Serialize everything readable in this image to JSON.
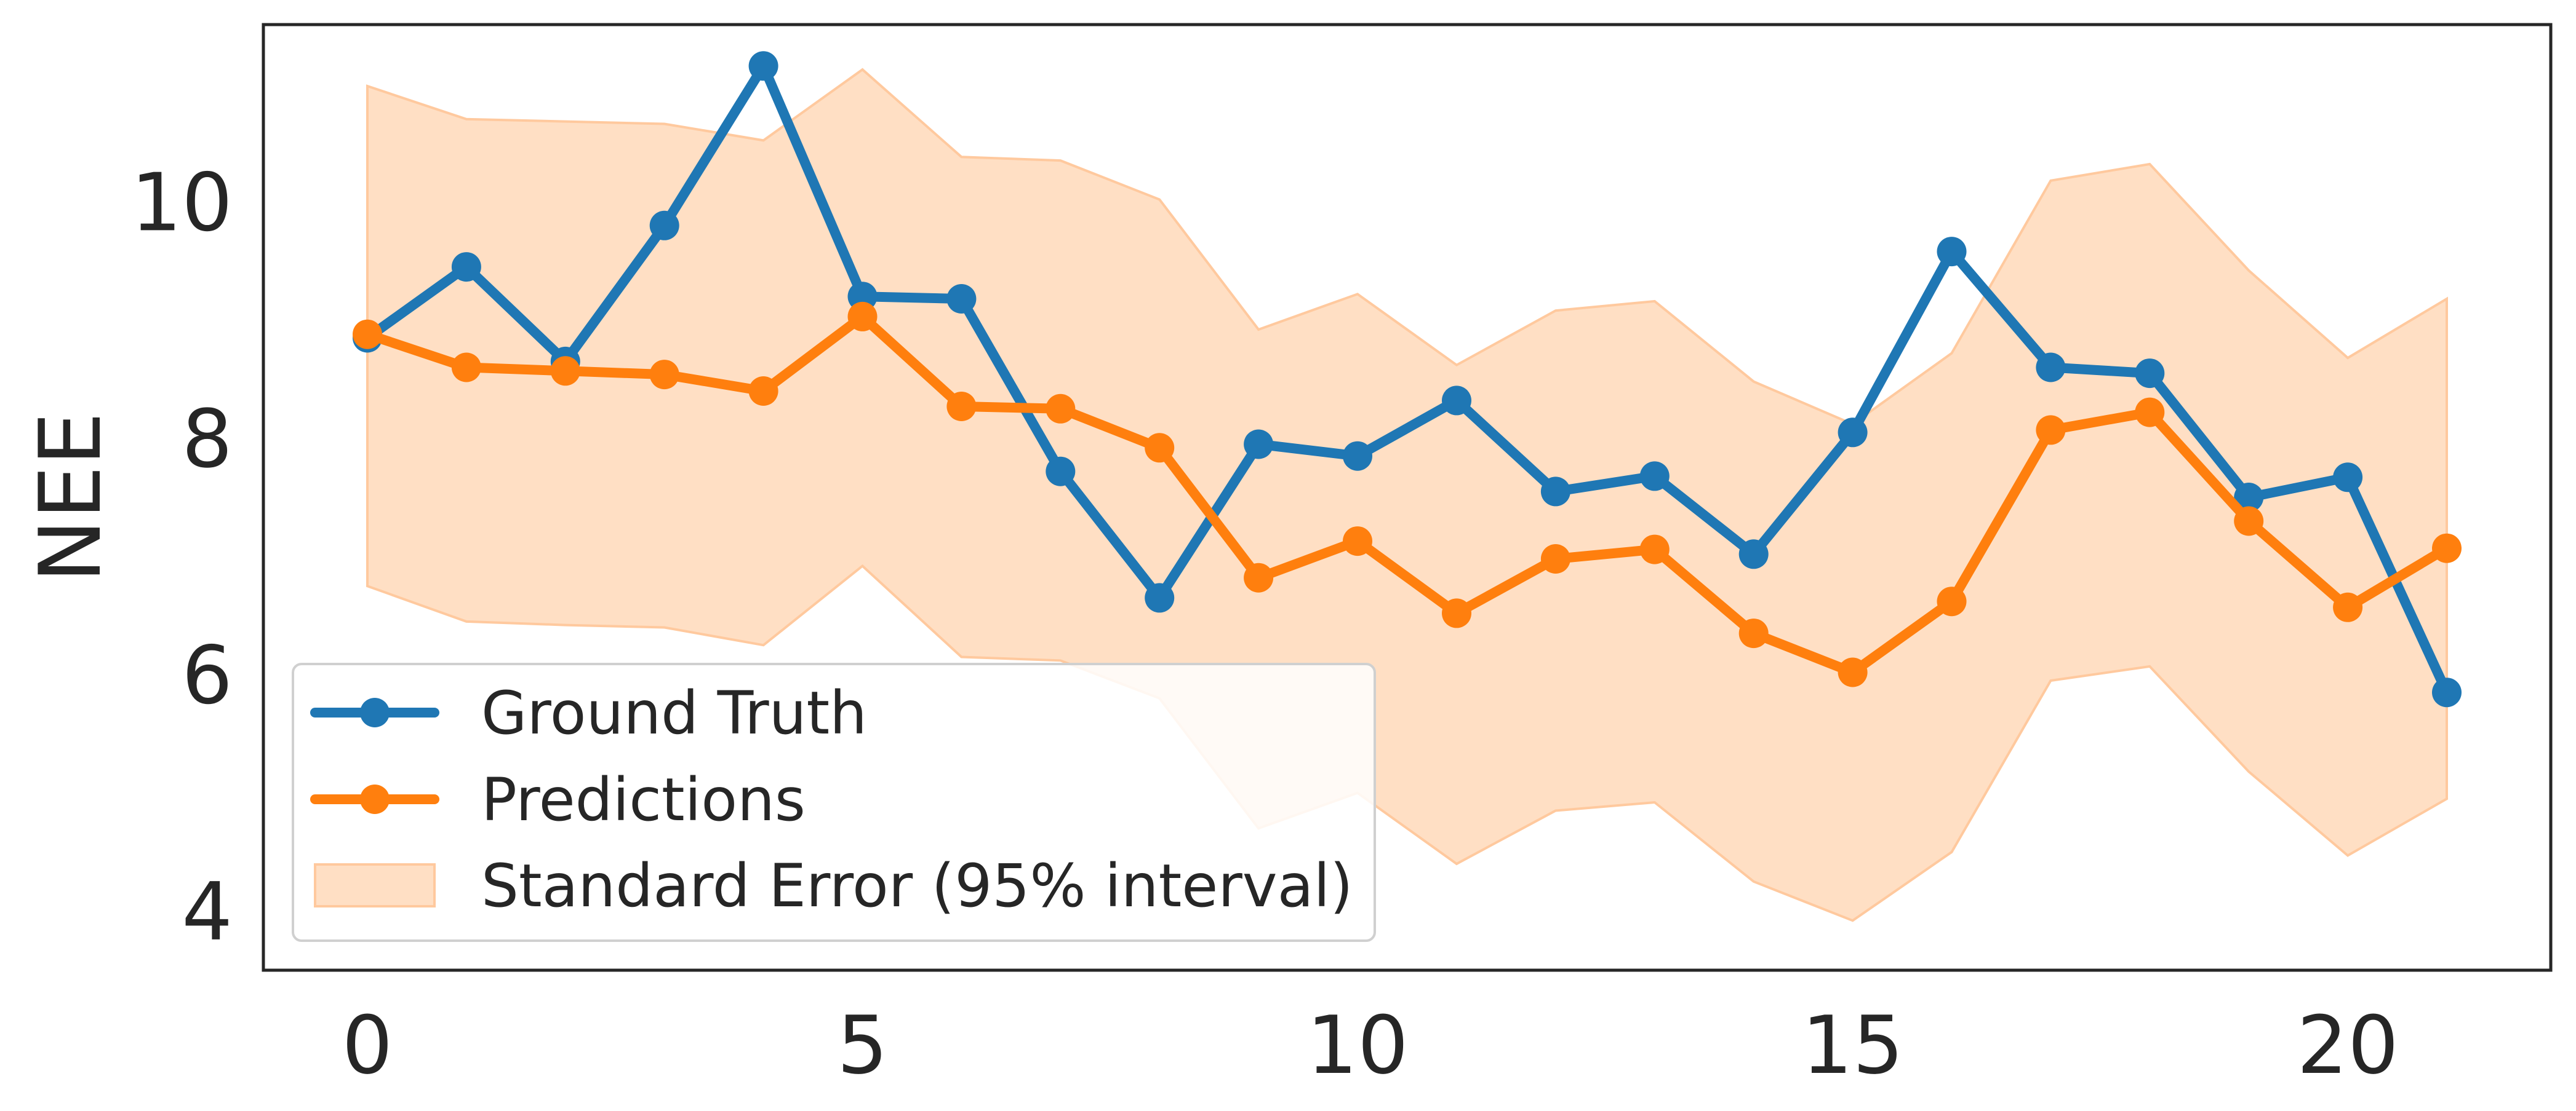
{
  "chart_data": {
    "type": "line",
    "title": "",
    "xlabel": "",
    "ylabel": "NEE",
    "xlim": [
      -1.05,
      22.05
    ],
    "ylim": [
      3.5,
      11.5
    ],
    "xticks": [
      0,
      5,
      10,
      15,
      20
    ],
    "yticks": [
      4,
      6,
      8,
      10
    ],
    "grid": false,
    "legend_position": "lower-left",
    "x": [
      0,
      1,
      2,
      3,
      4,
      5,
      6,
      7,
      8,
      9,
      10,
      11,
      12,
      13,
      14,
      15,
      16,
      17,
      18,
      19,
      20,
      21
    ],
    "series": [
      {
        "name": "Ground Truth",
        "color": "#1f77b4",
        "values": [
          8.85,
          9.45,
          8.65,
          9.8,
          11.15,
          9.2,
          9.18,
          7.72,
          6.65,
          7.95,
          7.85,
          8.32,
          7.55,
          7.68,
          7.02,
          8.05,
          9.58,
          8.6,
          8.55,
          7.5,
          7.67,
          5.85
        ]
      },
      {
        "name": "Predictions",
        "color": "#ff7f0e",
        "values": [
          8.88,
          8.6,
          8.57,
          8.54,
          8.4,
          9.03,
          8.27,
          8.25,
          7.92,
          6.82,
          7.13,
          6.52,
          6.98,
          7.06,
          6.35,
          6.02,
          6.62,
          8.07,
          8.22,
          7.3,
          6.57,
          7.07
        ]
      }
    ],
    "band": {
      "name": "Standard Error (95% interval)",
      "color": "#ffdfc4",
      "edge_color": "#ffc99e",
      "lower": [
        6.75,
        6.45,
        6.42,
        6.4,
        6.25,
        6.92,
        6.15,
        6.12,
        5.8,
        4.7,
        5.0,
        4.4,
        4.85,
        4.92,
        4.25,
        3.92,
        4.5,
        5.95,
        6.07,
        5.18,
        4.47,
        4.95
      ],
      "upper": [
        10.98,
        10.7,
        10.68,
        10.66,
        10.52,
        11.12,
        10.38,
        10.35,
        10.02,
        8.92,
        9.22,
        8.62,
        9.08,
        9.16,
        8.48,
        8.12,
        8.72,
        10.18,
        10.32,
        9.42,
        8.68,
        9.18
      ]
    }
  }
}
